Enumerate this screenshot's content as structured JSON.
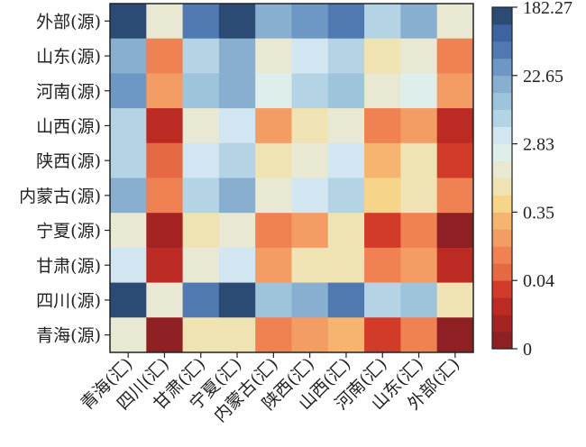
{
  "chart_data": {
    "type": "heatmap",
    "title": "",
    "xlabel": "",
    "ylabel": "",
    "rows": [
      "外部(源)",
      "山东(源)",
      "河南(源)",
      "山西(源)",
      "陕西(源)",
      "内蒙古(源)",
      "宁夏(源)",
      "甘肃(源)",
      "四川(源)",
      "青海(源)"
    ],
    "columns": [
      "青海(汇)",
      "四川(汇)",
      "甘肃(汇)",
      "宁夏(汇)",
      "内蒙古(汇)",
      "陕西(汇)",
      "山西(汇)",
      "河南(汇)",
      "山东(汇)",
      "外部(汇)"
    ],
    "values": [
      [
        150,
        1.5,
        60,
        150,
        14,
        30,
        60,
        8,
        14,
        1.5
      ],
      [
        14,
        0.09,
        8,
        14,
        1.5,
        3.5,
        8,
        0.6,
        1.5,
        0.07
      ],
      [
        30,
        0.2,
        11,
        22,
        2.3,
        5,
        11,
        1.5,
        2.3,
        0.15
      ],
      [
        5,
        0.025,
        1.5,
        3.5,
        0.2,
        0.6,
        1.5,
        0.09,
        0.2,
        0.025
      ],
      [
        8,
        0.05,
        3.5,
        5,
        0.6,
        1.5,
        3.5,
        0.3,
        0.6,
        0.03
      ],
      [
        14,
        0.09,
        5,
        14,
        1.5,
        3.5,
        5,
        0.5,
        0.8,
        0.07
      ],
      [
        1.5,
        0.015,
        0.6,
        1.5,
        0.07,
        0.2,
        0.6,
        0.035,
        0.07,
        0.005
      ],
      [
        3.5,
        0.025,
        1.5,
        3.5,
        0.2,
        0.6,
        0.8,
        0.09,
        0.15,
        0.02
      ],
      [
        150,
        1.5,
        60,
        150,
        11,
        22,
        60,
        5,
        11,
        0.8
      ],
      [
        1.5,
        0.005,
        0.6,
        0.8,
        0.07,
        0.15,
        0.3,
        0.03,
        0.07,
        0.005
      ]
    ],
    "colorbar": {
      "ticks": [
        0,
        0.04,
        0.35,
        2.83,
        22.65,
        182.27
      ],
      "tick_labels": [
        "0",
        "0.04",
        "0.35",
        "2.83",
        "22.65",
        "182.27"
      ],
      "range": [
        0,
        182.27
      ],
      "scale": "log-like (equal spacing between ticks)",
      "placement": "right"
    },
    "colormap": [
      "#8e1f22",
      "#a52423",
      "#bc2b23",
      "#d23b2a",
      "#e56a43",
      "#ef8153",
      "#f39c64",
      "#f5b470",
      "#f6d48a",
      "#efe2b3",
      "#e8e8d3",
      "#deeeea",
      "#d1e6f0",
      "#b4d4e6",
      "#9ec4dc",
      "#88aed0",
      "#6d97c4",
      "#5079b2",
      "#3d63a0",
      "#2b4a74"
    ]
  }
}
